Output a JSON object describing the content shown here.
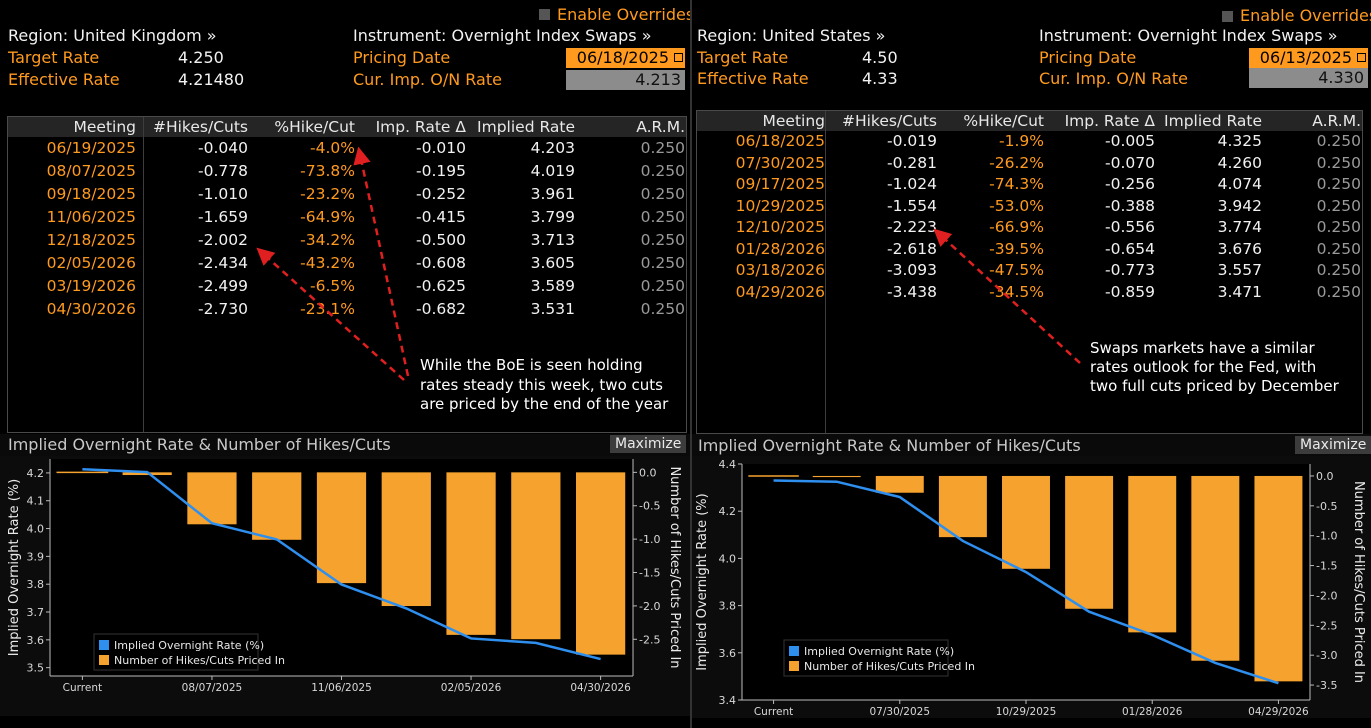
{
  "enable_overrides": "Enable Overrides",
  "maximize": "Maximize",
  "uk": {
    "region": "Region: United Kingdom »",
    "instrument": "Instrument: Overnight Index Swaps »",
    "target_label": "Target Rate",
    "target_value": "4.250",
    "effective_label": "Effective Rate",
    "effective_value": "4.21480",
    "pricing_label": "Pricing Date",
    "pricing_value": "06/18/2025",
    "imp_label": "Cur. Imp. O/N Rate",
    "imp_value": "4.213",
    "columns": [
      "Meeting",
      "#Hikes/Cuts",
      "%Hike/Cut",
      "Imp. Rate Δ",
      "Implied Rate",
      "A.R.M."
    ],
    "rows": [
      [
        "06/19/2025",
        "-0.040",
        "-4.0%",
        "-0.010",
        "4.203",
        "0.250"
      ],
      [
        "08/07/2025",
        "-0.778",
        "-73.8%",
        "-0.195",
        "4.019",
        "0.250"
      ],
      [
        "09/18/2025",
        "-1.010",
        "-23.2%",
        "-0.252",
        "3.961",
        "0.250"
      ],
      [
        "11/06/2025",
        "-1.659",
        "-64.9%",
        "-0.415",
        "3.799",
        "0.250"
      ],
      [
        "12/18/2025",
        "-2.002",
        "-34.2%",
        "-0.500",
        "3.713",
        "0.250"
      ],
      [
        "02/05/2026",
        "-2.434",
        "-43.2%",
        "-0.608",
        "3.605",
        "0.250"
      ],
      [
        "03/19/2026",
        "-2.499",
        "-6.5%",
        "-0.625",
        "3.589",
        "0.250"
      ],
      [
        "04/30/2026",
        "-2.730",
        "-23.1%",
        "-0.682",
        "3.531",
        "0.250"
      ]
    ],
    "annotation": [
      "While the BoE is seen holding",
      "rates steady this week, two cuts",
      "are priced by the end of the year"
    ]
  },
  "us": {
    "region": "Region: United States »",
    "instrument": "Instrument: Overnight Index Swaps »",
    "target_label": "Target Rate",
    "target_value": "4.50",
    "effective_label": "Effective Rate",
    "effective_value": "4.33",
    "pricing_label": "Pricing Date",
    "pricing_value": "06/13/2025",
    "imp_label": "Cur. Imp. O/N Rate",
    "imp_value": "4.330",
    "columns": [
      "Meeting",
      "#Hikes/Cuts",
      "%Hike/Cut",
      "Imp. Rate Δ",
      "Implied Rate",
      "A.R.M."
    ],
    "rows": [
      [
        "06/18/2025",
        "-0.019",
        "-1.9%",
        "-0.005",
        "4.325",
        "0.250"
      ],
      [
        "07/30/2025",
        "-0.281",
        "-26.2%",
        "-0.070",
        "4.260",
        "0.250"
      ],
      [
        "09/17/2025",
        "-1.024",
        "-74.3%",
        "-0.256",
        "4.074",
        "0.250"
      ],
      [
        "10/29/2025",
        "-1.554",
        "-53.0%",
        "-0.388",
        "3.942",
        "0.250"
      ],
      [
        "12/10/2025",
        "-2.223",
        "-66.9%",
        "-0.556",
        "3.774",
        "0.250"
      ],
      [
        "01/28/2026",
        "-2.618",
        "-39.5%",
        "-0.654",
        "3.676",
        "0.250"
      ],
      [
        "03/18/2026",
        "-3.093",
        "-47.5%",
        "-0.773",
        "3.557",
        "0.250"
      ],
      [
        "04/29/2026",
        "-3.438",
        "-34.5%",
        "-0.859",
        "3.471",
        "0.250"
      ]
    ],
    "annotation": [
      "Swaps markets have a similar",
      "rates outlook for the Fed, with",
      "two full cuts priced by December"
    ]
  },
  "chart_data": [
    {
      "type": "bar",
      "title": "Implied Overnight Rate & Number of Hikes/Cuts",
      "ylabel": "Implied Overnight Rate (%)",
      "y2label": "Number of Hikes/Cuts Priced In",
      "categories": [
        "Current",
        "06/19/2025",
        "08/07/2025",
        "09/18/2025",
        "11/06/2025",
        "12/18/2025",
        "02/05/2026",
        "03/19/2026",
        "04/30/2026"
      ],
      "x_tick_labels": [
        "Current",
        "08/07/2025",
        "11/06/2025",
        "02/05/2026",
        "04/30/2026"
      ],
      "series": [
        {
          "name": "Implied Overnight Rate (%)",
          "axis": "left",
          "kind": "line",
          "color": "#2f8fef",
          "values": [
            4.213,
            4.203,
            4.019,
            3.961,
            3.799,
            3.713,
            3.605,
            3.589,
            3.531
          ]
        },
        {
          "name": "Number of Hikes/Cuts Priced In",
          "axis": "right",
          "kind": "bar",
          "color": "#f5a32e",
          "values": [
            0,
            -0.04,
            -0.778,
            -1.01,
            -1.659,
            -2.002,
            -2.434,
            -2.499,
            -2.73
          ]
        }
      ],
      "ylim": [
        3.47,
        4.25
      ],
      "yticks": [
        3.5,
        3.6,
        3.7,
        3.8,
        3.9,
        4.0,
        4.1,
        4.2
      ],
      "y2lim": [
        -3.05,
        0.2
      ],
      "y2ticks": [
        0.0,
        -0.5,
        -1.0,
        -1.5,
        -2.0,
        -2.5
      ],
      "legend": "bottom-left"
    },
    {
      "type": "bar",
      "title": "Implied Overnight Rate & Number of Hikes/Cuts",
      "ylabel": "Implied Overnight Rate (%)",
      "y2label": "Number of Hikes/Cuts Priced In",
      "categories": [
        "Current",
        "06/18/2025",
        "07/30/2025",
        "09/17/2025",
        "10/29/2025",
        "12/10/2025",
        "01/28/2026",
        "03/18/2026",
        "04/29/2026"
      ],
      "x_tick_labels": [
        "Current",
        "07/30/2025",
        "10/29/2025",
        "01/28/2026",
        "04/29/2026"
      ],
      "series": [
        {
          "name": "Implied Overnight Rate (%)",
          "axis": "left",
          "kind": "line",
          "color": "#2f8fef",
          "values": [
            4.33,
            4.325,
            4.26,
            4.074,
            3.942,
            3.774,
            3.676,
            3.557,
            3.471
          ]
        },
        {
          "name": "Number of Hikes/Cuts Priced In",
          "axis": "right",
          "kind": "bar",
          "color": "#f5a32e",
          "values": [
            0,
            -0.019,
            -0.281,
            -1.024,
            -1.554,
            -2.223,
            -2.618,
            -3.093,
            -3.438
          ]
        }
      ],
      "ylim": [
        3.4,
        4.4
      ],
      "yticks": [
        3.4,
        3.6,
        3.8,
        4.0,
        4.2,
        4.4
      ],
      "y2lim": [
        -3.75,
        0.2
      ],
      "y2ticks": [
        0.0,
        -0.5,
        -1.0,
        -1.5,
        -2.0,
        -2.5,
        -3.0,
        -3.5
      ],
      "legend": "bottom-left"
    }
  ]
}
